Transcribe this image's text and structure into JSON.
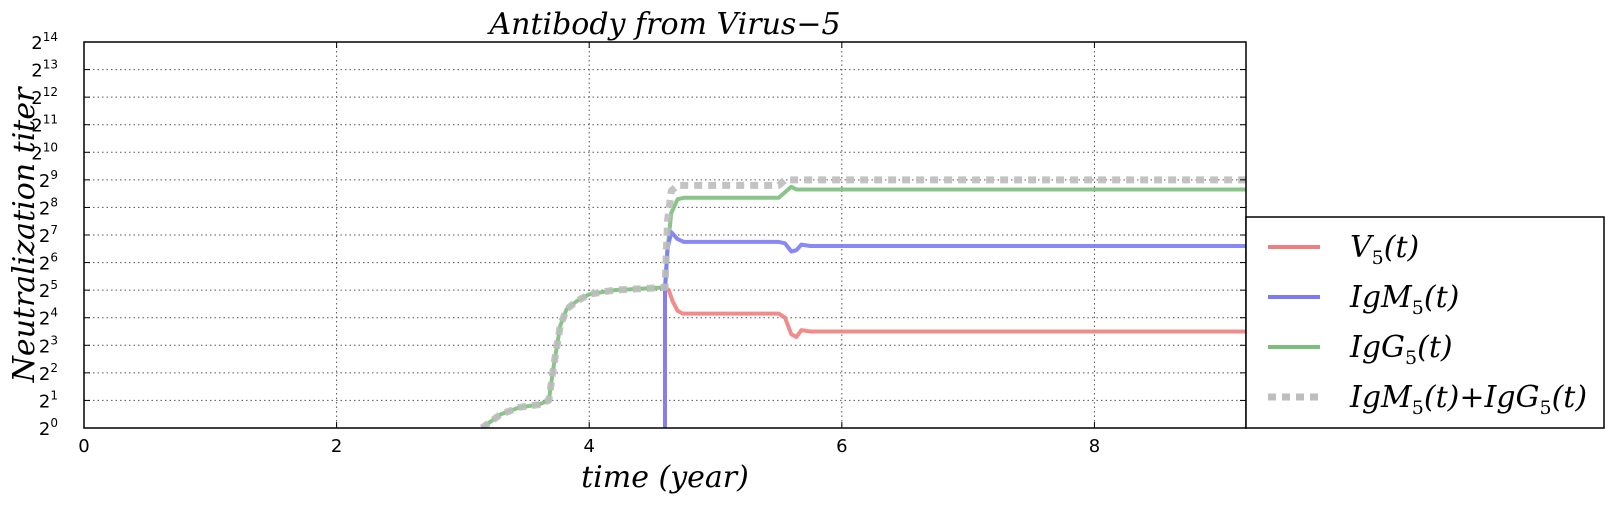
{
  "chart_data": {
    "type": "line",
    "title": "Antibody from Virus−5",
    "xlabel": "time (year)",
    "ylabel": "Neutralization titer",
    "xlim": [
      0,
      9.2
    ],
    "ylim": [
      0,
      14
    ],
    "y_scale": "log2",
    "x_ticks": [
      0,
      2,
      4,
      6,
      8
    ],
    "y_ticks": [
      0,
      1,
      2,
      3,
      4,
      5,
      6,
      7,
      8,
      9,
      10,
      11,
      12,
      13,
      14
    ],
    "y_tick_base": "2",
    "grid": true,
    "legend_position": "lower-right outside",
    "series": [
      {
        "name": "V5(t)",
        "name_base": "V",
        "name_sub": "5",
        "name_tail": "(t)",
        "color": "#f08080",
        "style": "solid",
        "x": [
          4.6,
          4.6,
          4.63,
          4.66,
          4.7,
          4.74,
          4.8,
          5.0,
          5.5,
          5.55,
          5.6,
          5.64,
          5.68,
          5.75,
          9.2
        ],
        "y": [
          0,
          5.1,
          5.0,
          4.6,
          4.25,
          4.15,
          4.15,
          4.15,
          4.15,
          4.0,
          3.4,
          3.3,
          3.55,
          3.5,
          3.5
        ]
      },
      {
        "name": "IgM5(t)",
        "name_base": "IgM",
        "name_sub": "5",
        "name_tail": "(t)",
        "color": "#7b7bf5",
        "style": "solid",
        "x": [
          4.6,
          4.6,
          4.62,
          4.65,
          4.7,
          4.75,
          4.9,
          5.5,
          5.55,
          5.6,
          5.64,
          5.68,
          5.75,
          9.2
        ],
        "y": [
          0,
          5.0,
          6.5,
          7.1,
          6.85,
          6.75,
          6.75,
          6.75,
          6.7,
          6.4,
          6.45,
          6.65,
          6.6,
          6.6
        ]
      },
      {
        "name": "IgG5(t)",
        "name_base": "IgG",
        "name_sub": "5",
        "name_tail": "(t)",
        "color": "#7cbf7c",
        "style": "solid",
        "x": [
          3.15,
          3.3,
          3.45,
          3.6,
          3.68,
          3.72,
          3.77,
          3.82,
          3.9,
          4.0,
          4.2,
          4.4,
          4.6,
          4.62,
          4.65,
          4.7,
          4.75,
          4.9,
          5.5,
          5.55,
          5.6,
          5.64,
          5.7,
          9.2
        ],
        "y": [
          0,
          0.5,
          0.75,
          0.85,
          1.0,
          2.3,
          3.7,
          4.3,
          4.6,
          4.85,
          5.0,
          5.05,
          5.1,
          6.5,
          7.8,
          8.3,
          8.35,
          8.35,
          8.35,
          8.55,
          8.75,
          8.65,
          8.65,
          8.65
        ]
      },
      {
        "name": "IgM5(t)+IgG5(t)",
        "name_base": "IgM",
        "name_sub": "5",
        "name_tail": "(t)+IgG",
        "name_sub2": "5",
        "name_tail2": "(t)",
        "color": "#bdbdbd",
        "style": "dotted",
        "x": [
          3.15,
          3.3,
          3.45,
          3.6,
          3.68,
          3.72,
          3.77,
          3.82,
          3.9,
          4.0,
          4.2,
          4.4,
          4.6,
          4.62,
          4.65,
          4.7,
          4.9,
          5.5,
          5.55,
          5.6,
          9.2
        ],
        "y": [
          0,
          0.5,
          0.75,
          0.85,
          1.0,
          2.3,
          3.7,
          4.3,
          4.6,
          4.85,
          5.0,
          5.05,
          5.1,
          7.5,
          8.6,
          8.8,
          8.8,
          8.8,
          9.0,
          9.0,
          9.0
        ]
      }
    ]
  }
}
